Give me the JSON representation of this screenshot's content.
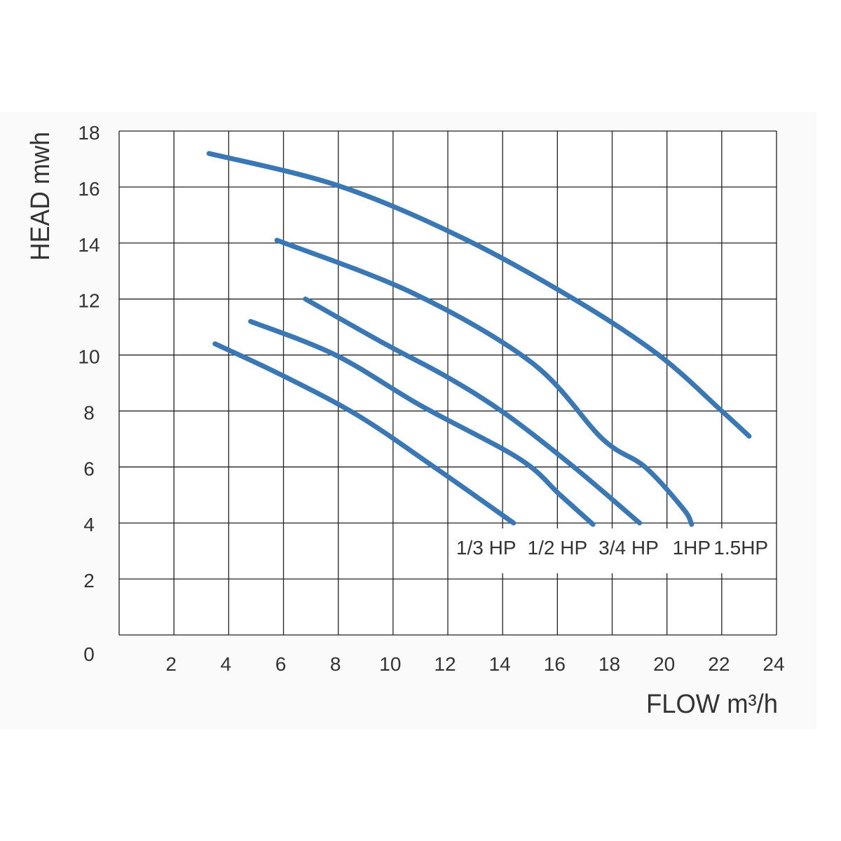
{
  "chart_data": {
    "type": "line",
    "xlabel": "FLOW  m³/h",
    "ylabel": "HEAD mwh",
    "xlim": [
      0,
      24
    ],
    "ylim": [
      0,
      18
    ],
    "x_ticks": [
      "2",
      "4",
      "6",
      "8",
      "10",
      "12",
      "14",
      "16",
      "18",
      "20",
      "22",
      "24"
    ],
    "y_ticks": [
      "0",
      "2",
      "4",
      "6",
      "8",
      "10",
      "12",
      "14",
      "16",
      "18"
    ],
    "grid": true,
    "line_color": "#3a78b5",
    "series": [
      {
        "name": "1/3 HP",
        "label_x": 13.4,
        "points": [
          [
            3.5,
            10.4
          ],
          [
            5.9,
            9.3
          ],
          [
            8.7,
            7.85
          ],
          [
            11.5,
            6.0
          ],
          [
            14.4,
            4.0
          ]
        ]
      },
      {
        "name": "1/2 HP",
        "label_x": 16.0,
        "points": [
          [
            4.8,
            11.2
          ],
          [
            7.9,
            10.0
          ],
          [
            11.0,
            8.2
          ],
          [
            14.6,
            6.3
          ],
          [
            16.1,
            5.0
          ],
          [
            17.3,
            3.95
          ]
        ]
      },
      {
        "name": "3/4 HP",
        "label_x": 18.6,
        "points": [
          [
            6.8,
            12.0
          ],
          [
            9.7,
            10.4
          ],
          [
            12.0,
            9.2
          ],
          [
            14.1,
            7.9
          ],
          [
            16.6,
            6.0
          ],
          [
            19.0,
            4.0
          ]
        ]
      },
      {
        "name": "1HP",
        "label_x": 20.9,
        "points": [
          [
            5.76,
            14.1
          ],
          [
            10.75,
            12.2
          ],
          [
            15.1,
            9.7
          ],
          [
            17.65,
            7.0
          ],
          [
            19.2,
            6.0
          ],
          [
            20.6,
            4.5
          ],
          [
            20.9,
            3.95
          ]
        ]
      },
      {
        "name": "1.5HP",
        "label_x": 22.7,
        "points": [
          [
            3.28,
            17.2
          ],
          [
            8.0,
            16.05
          ],
          [
            12.5,
            14.2
          ],
          [
            16.6,
            12.0
          ],
          [
            19.7,
            10.0
          ],
          [
            22.0,
            8.0
          ],
          [
            23.0,
            7.1
          ]
        ]
      }
    ]
  }
}
